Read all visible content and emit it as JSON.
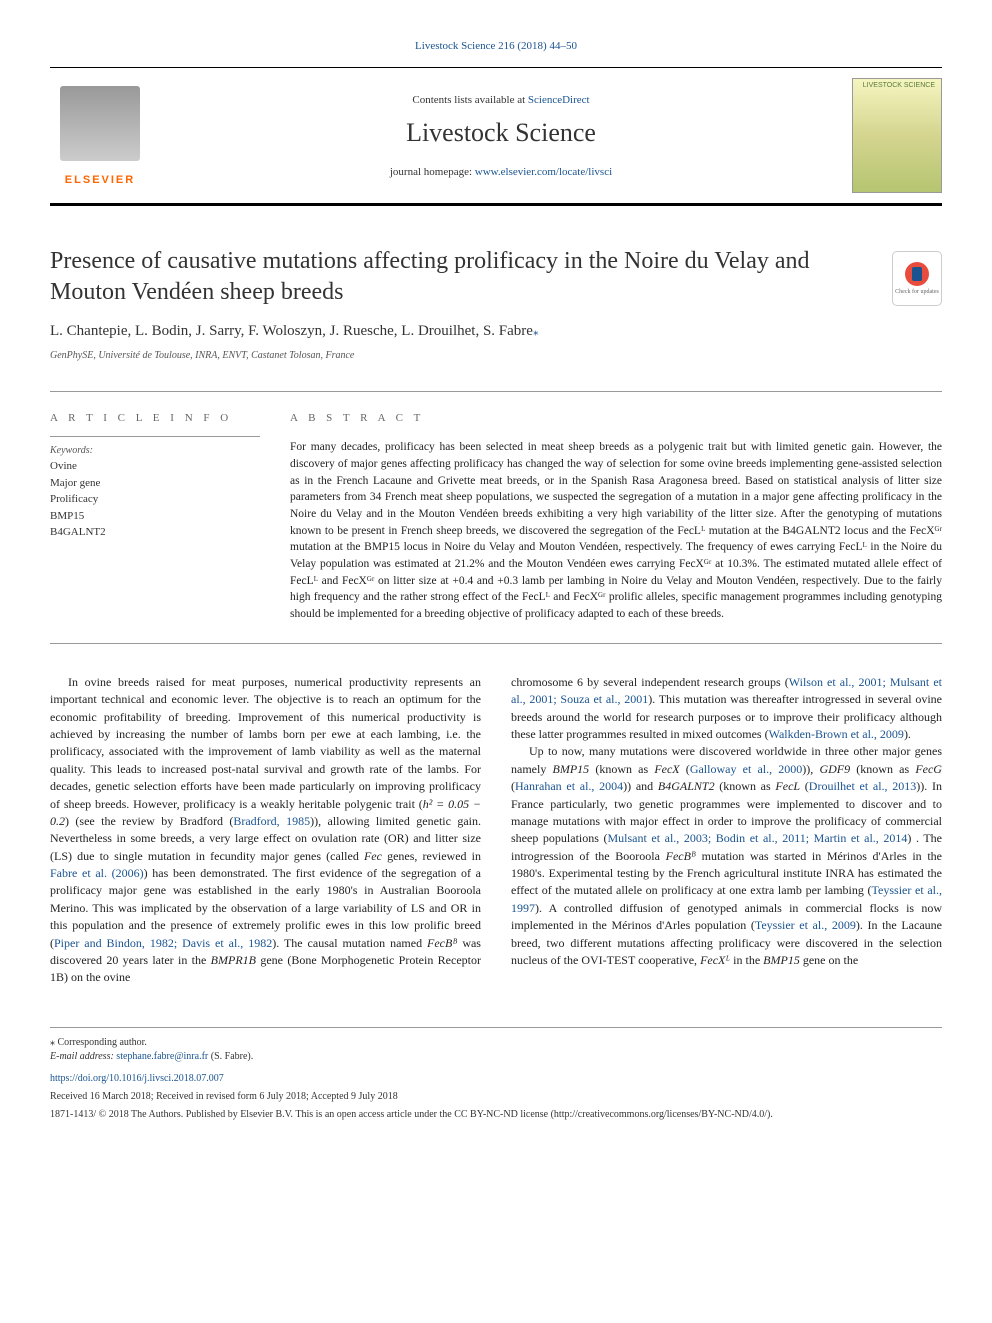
{
  "colors": {
    "link": "#1a5490",
    "elsevier_orange": "#ff6600",
    "text": "#222222",
    "muted": "#666666",
    "rule": "#999999"
  },
  "journal_ref": "Livestock Science 216 (2018) 44–50",
  "header": {
    "elsevier_label": "ELSEVIER",
    "contents_prefix": "Contents lists available at ",
    "sciencedirect": "ScienceDirect",
    "journal_name": "Livestock Science",
    "homepage_prefix": "journal homepage: ",
    "homepage_url": "www.elsevier.com/locate/livsci",
    "cover_label": "LIVESTOCK SCIENCE"
  },
  "title": "Presence of causative mutations affecting prolificacy in the Noire du Velay and Mouton Vendéen sheep breeds",
  "check_updates": "Check for updates",
  "authors": "L. Chantepie, L. Bodin, J. Sarry, F. Woloszyn, J. Ruesche, L. Drouilhet, S. Fabre",
  "corr_marker": "⁎",
  "affiliation": "GenPhySE, Université de Toulouse, INRA, ENVT, Castanet Tolosan, France",
  "article_info": {
    "header": "A R T I C L E  I N F O",
    "keywords_label": "Keywords:",
    "keywords": [
      "Ovine",
      "Major gene",
      "Prolificacy",
      "BMP15",
      "B4GALNT2"
    ]
  },
  "abstract": {
    "header": "A B S T R A C T",
    "text": "For many decades, prolificacy has been selected in meat sheep breeds as a polygenic trait but with limited genetic gain. However, the discovery of major genes affecting prolificacy has changed the way of selection for some ovine breeds implementing gene-assisted selection as in the French Lacaune and Grivette meat breeds, or in the Spanish Rasa Aragonesa breed. Based on statistical analysis of litter size parameters from 34 French meat sheep populations, we suspected the segregation of a mutation in a major gene affecting prolificacy in the Noire du Velay and in the Mouton Vendéen breeds exhibiting a very high variability of the litter size. After the genotyping of mutations known to be present in French sheep breeds, we discovered the segregation of the FecLᴸ mutation at the B4GALNT2 locus and the FecXᴳʳ mutation at the BMP15 locus in Noire du Velay and Mouton Vendéen, respectively. The frequency of ewes carrying FecLᴸ in the Noire du Velay population was estimated at 21.2% and the Mouton Vendéen ewes carrying FecXᴳʳ at 10.3%. The estimated mutated allele effect of FecLᴸ and FecXᴳʳ on litter size at +0.4 and +0.3 lamb per lambing in Noire du Velay and Mouton Vendéen, respectively. Due to the fairly high frequency and the rather strong effect of the FecLᴸ and FecXᴳʳ prolific alleles, specific management programmes including genotyping should be implemented for a breeding objective of prolificacy adapted to each of these breeds."
  },
  "body": {
    "col1": {
      "p1_a": "In ovine breeds raised for meat purposes, numerical productivity represents an important technical and economic lever. The objective is to reach an optimum for the economic profitability of breeding. Improvement of this numerical productivity is achieved by increasing the number of lambs born per ewe at each lambing, i.e. the prolificacy, associated with the improvement of lamb viability as well as the maternal quality. This leads to increased post-natal survival and growth rate of the lambs. For decades, genetic selection efforts have been made particularly on improving prolificacy of sheep breeds. However, prolificacy is a weakly heritable polygenic trait (",
      "h2": "h² = 0.05 − 0.2",
      "p1_b": ") (see the review by Bradford (",
      "cite1": "Bradford, 1985",
      "p1_c": ")), allowing limited genetic gain. Nevertheless in some breeds, a very large effect on ovulation rate (OR) and litter size (LS) due to single mutation in fecundity major genes (called ",
      "fec": "Fec",
      "p1_d": " genes, reviewed in ",
      "cite2": "Fabre et al. (2006)",
      "p1_e": ") has been demonstrated. The first evidence of the segregation of a prolificacy major gene was established in the early 1980's in Australian Booroola Merino. This was implicated by the observation of a large variability of LS and OR in this population and the presence of extremely prolific ewes in this low prolific breed (",
      "cite3": "Piper and Bindon, 1982; Davis et al., 1982",
      "p1_f": "). The causal mutation named ",
      "fecbb": "FecBᴮ",
      "p1_g": " was discovered 20 years later in the ",
      "bmpr1b": "BMPR1B",
      "p1_h": " gene (Bone Morphogenetic Protein Receptor 1B) on the ovine"
    },
    "col2": {
      "p1_a": "chromosome 6 by several independent research groups (",
      "cite1": "Wilson et al., 2001; Mulsant et al., 2001; Souza et al., 2001",
      "p1_b": "). This mutation was thereafter introgressed in several ovine breeds around the world for research purposes or to improve their prolificacy although these latter programmes resulted in mixed outcomes (",
      "cite2": "Walkden-Brown et al., 2009",
      "p1_c": ").",
      "p2_a": "Up to now, many mutations were discovered worldwide in three other major genes namely ",
      "bmp15": "BMP15",
      "p2_b": " (known as ",
      "fecx": "FecX",
      "p2_c": " (",
      "cite3": "Galloway et al., 2000",
      "p2_d": ")), ",
      "gdf9": "GDF9",
      "p2_e": " (known as ",
      "fecg": "FecG",
      "p2_f": " (",
      "cite4": "Hanrahan et al., 2004",
      "p2_g": ")) and ",
      "b4g": "B4GALNT2",
      "p2_h": " (known as ",
      "fecl": "FecL",
      "p2_i": " (",
      "cite5": "Drouilhet et al., 2013",
      "p2_j": ")). In France particularly, two genetic programmes were implemented to discover and to manage mutations with major effect in order to improve the prolificacy of commercial sheep populations (",
      "cite6": "Mulsant et al., 2003; Bodin et al., 2011; Martin et al., 2014",
      "p2_k": ") . The introgression of the Booroola ",
      "fecbb2": "FecBᴮ",
      "p2_l": " mutation was started in Mérinos d'Arles in the 1980's. Experimental testing by the French agricultural institute INRA has estimated the effect of the mutated allele on prolificacy at one extra lamb per lambing (",
      "cite7": "Teyssier et al., 1997",
      "p2_m": "). A controlled diffusion of genotyped animals in commercial flocks is now implemented in the Mérinos d'Arles population (",
      "cite8": "Teyssier et al., 2009",
      "p2_n": "). In the Lacaune breed, two different mutations affecting prolificacy were discovered in the selection nucleus of the OVI-TEST cooperative, ",
      "fecxl": "FecXᴸ",
      "p2_o": " in the ",
      "bmp15_2": "BMP15",
      "p2_p": " gene on the"
    }
  },
  "footer": {
    "corr_label": "⁎ Corresponding author.",
    "email_label": "E-mail address: ",
    "email": "stephane.fabre@inra.fr",
    "email_suffix": " (S. Fabre).",
    "doi": "https://doi.org/10.1016/j.livsci.2018.07.007",
    "received": "Received 16 March 2018; Received in revised form 6 July 2018; Accepted 9 July 2018",
    "issn_line": "1871-1413/ © 2018 The Authors. Published by Elsevier B.V. This is an open access article under the CC BY-NC-ND license (http://creativecommons.org/licenses/BY-NC-ND/4.0/)."
  }
}
